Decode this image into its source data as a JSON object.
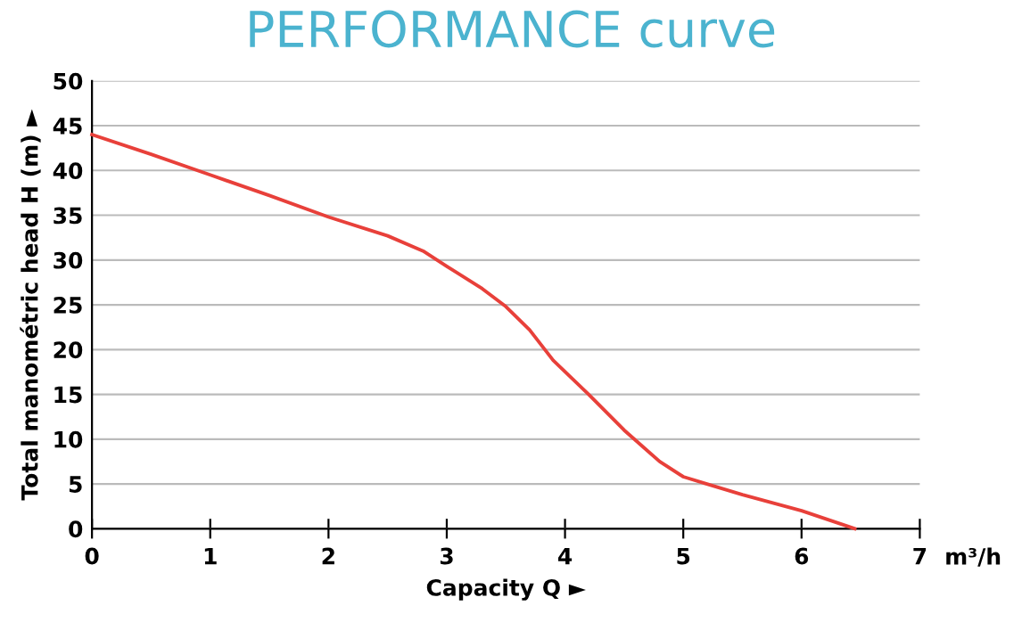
{
  "chart_data": {
    "type": "line",
    "title": "PERFORMANCE curve",
    "xlabel": "Capacity Q ►",
    "ylabel": "Total manométric head H (m) ►",
    "annotations": [
      "m³/h"
    ],
    "x": [
      0,
      0.5,
      1,
      1.5,
      2,
      2.5,
      2.8,
      3,
      3.3,
      3.5,
      3.7,
      3.9,
      4.2,
      4.5,
      4.8,
      5.0,
      5.2,
      5.5,
      6,
      6.45
    ],
    "series": [
      {
        "color": "#e8403a",
        "values": [
          44,
          41.8,
          39.5,
          37.2,
          34.8,
          32.7,
          31,
          29.3,
          26.8,
          24.8,
          22.2,
          18.8,
          15,
          11,
          7.5,
          5.8,
          5,
          3.8,
          2,
          0
        ]
      }
    ],
    "xlim": [
      0,
      7
    ],
    "ylim": [
      0,
      50
    ],
    "xticks": [
      0,
      1,
      2,
      3,
      4,
      5,
      6,
      7
    ],
    "yticks": [
      0,
      5,
      10,
      15,
      20,
      25,
      30,
      35,
      40,
      45,
      50
    ],
    "grid": "y",
    "marker": "none",
    "line_style": "solid"
  }
}
